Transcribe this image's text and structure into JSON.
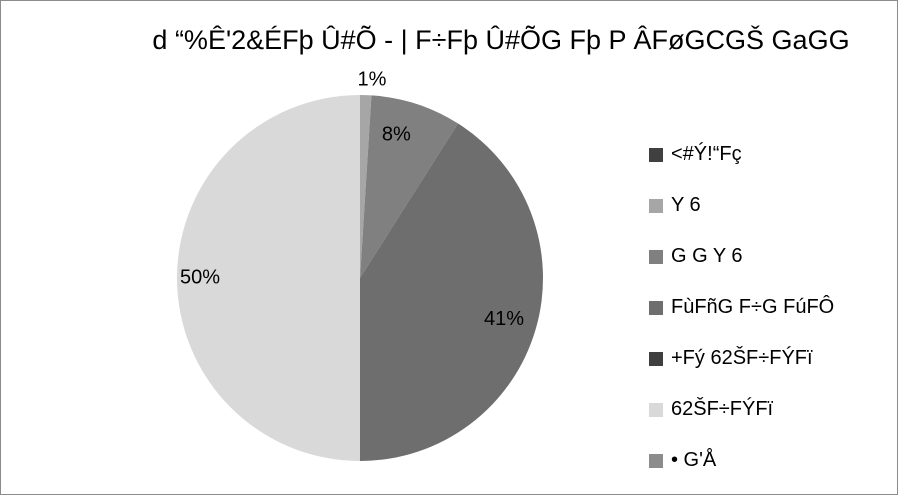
{
  "chart_data": {
    "type": "pie",
    "title": "d “%Ê'2&ÉFþ Û#Õ - |  F÷Fþ Û#ÕG Fþ P ÂFøGCGŠ GaGG",
    "categories": [
      "<#Ý!“Fç",
      "Y 6",
      "G G  Y 6",
      "FùFñG F÷G FúFÔ",
      "+Fý 62ŠF÷FÝFï",
      "62ŠF÷FÝFï",
      "• G'Å"
    ],
    "values": [
      0,
      1,
      8,
      41,
      0,
      50,
      0
    ],
    "data_labels": [
      "",
      "1%",
      "8%",
      "41%",
      "",
      "50%",
      ""
    ],
    "colors": [
      "#404040",
      "#a6a6a6",
      "#808080",
      "#6e6e6e",
      "#3f3f3f",
      "#d9d9d9",
      "#8c8c8c"
    ],
    "legend_position": "right"
  }
}
